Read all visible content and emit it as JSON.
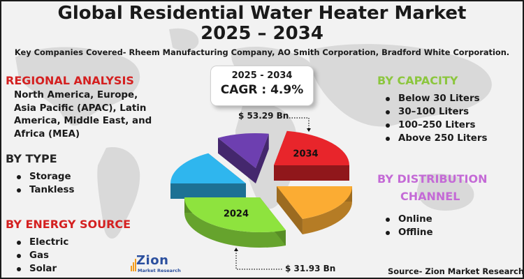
{
  "title_line1": "Global Residential Water Heater Market",
  "title_line2": "2025 – 2034",
  "subtitle": "Key Companies Covered- Rheem Manufacturing Company, AO Smith Corporation, Bradford White Corporation.",
  "regional": {
    "heading": "REGIONAL ANALYSIS",
    "text": "North America, Europe, Asia Pacific (APAC), Latin America, Middle East, and Africa (MEA)"
  },
  "by_type": {
    "heading": "BY TYPE",
    "items": [
      "Storage",
      "Tankless"
    ]
  },
  "by_energy": {
    "heading": "BY ENERGY SOURCE",
    "items": [
      "Electric",
      "Gas",
      "Solar"
    ]
  },
  "by_capacity": {
    "heading": "BY CAPACITY",
    "items": [
      "Below 30 Liters",
      "30–100 Liters",
      "100–250 Liters",
      "Above 250 Liters"
    ]
  },
  "by_distribution": {
    "heading_line1": "BY DISTRIBUTION",
    "heading_line2": "CHANNEL",
    "items": [
      "Online",
      "Offline"
    ]
  },
  "cagr": {
    "period": "2025 - 2034",
    "value": "CAGR : 4.9%"
  },
  "source": "Source- Zion Market Research",
  "logo": {
    "main": "Zion",
    "sub": "Market Research"
  },
  "colors": {
    "red_heading": "#d42020",
    "green_heading": "#8cc63e",
    "purple_heading": "#c46ad6"
  },
  "chart_data": {
    "type": "pie",
    "style": "3d-exploded",
    "slices": [
      {
        "label": "2034",
        "color": "#e8252b"
      },
      {
        "label": "",
        "color": "#fbac33"
      },
      {
        "label": "2024",
        "color": "#8ee33e"
      },
      {
        "label": "",
        "color": "#2fb6ee"
      },
      {
        "label": "",
        "color": "#6d3fb0"
      }
    ],
    "values_by_year": {
      "2024": "$ 31.93 Bn",
      "2034": "$ 53.29 Bn"
    }
  }
}
